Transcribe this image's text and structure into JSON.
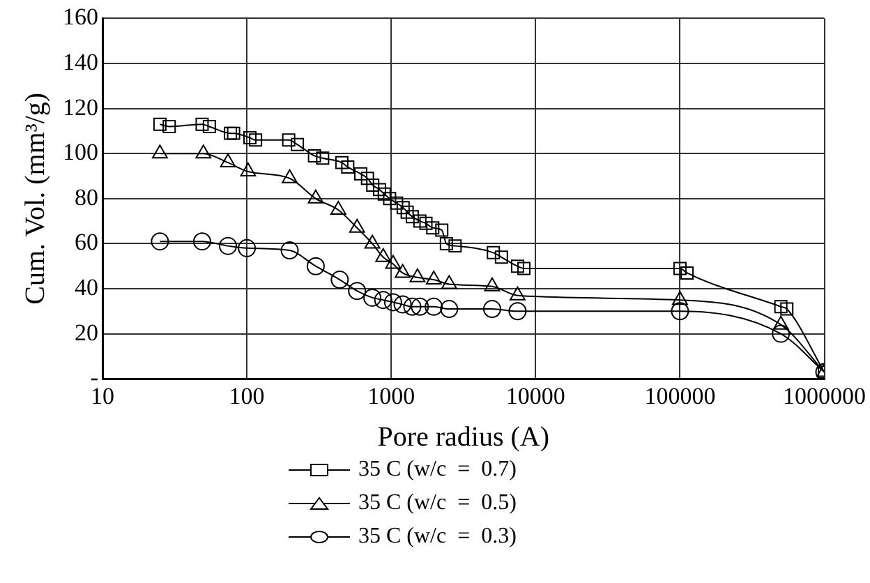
{
  "chart_data": {
    "type": "line",
    "xlabel": "Pore radius (A)",
    "ylabel": "Cum. Vol. (mm³/g)",
    "log": "x",
    "xlim": [
      10,
      1000000
    ],
    "xticks": [
      10,
      100,
      1000,
      10000,
      100000,
      1000000
    ],
    "ylim": [
      0,
      160
    ],
    "yticks": [
      {
        "value": 0,
        "label": "-"
      },
      20,
      40,
      60,
      80,
      100,
      120,
      140,
      160
    ],
    "grid": true,
    "legend": "bottom",
    "line_style": "solid",
    "series": [
      {
        "name": "35 C (w/c  =  0.7)",
        "color": "#000000",
        "marker": "square",
        "x": [
          25,
          29,
          49,
          55,
          77,
          81,
          105,
          115,
          195,
          224,
          294,
          335,
          455,
          500,
          615,
          685,
          745,
          830,
          895,
          975,
          1090,
          1210,
          1290,
          1400,
          1580,
          1740,
          1940,
          2240,
          2410,
          2770,
          5100,
          5800,
          7500,
          8300,
          100000,
          112000,
          500000,
          550000,
          1000000
        ],
        "values": [
          113,
          112,
          113,
          112,
          109,
          109,
          107,
          106,
          106,
          104,
          99,
          98,
          96,
          94,
          91,
          89,
          86,
          84,
          82,
          80,
          78,
          76,
          74,
          72,
          70,
          69,
          67,
          66,
          60,
          59,
          56,
          54,
          50,
          49,
          49,
          47,
          32,
          31,
          3
        ]
      },
      {
        "name": "35 C (w/c  =  0.5)",
        "color": "#000000",
        "marker": "triangle",
        "x": [
          25,
          50,
          74,
          102,
          198,
          300,
          430,
          580,
          740,
          880,
          1030,
          1200,
          1520,
          1970,
          2520,
          5000,
          7500,
          100000,
          500000,
          1000000
        ],
        "values": [
          100,
          100,
          96,
          92,
          89,
          80,
          75,
          67,
          60,
          54,
          51,
          47,
          45,
          44,
          42,
          41,
          37,
          35,
          24,
          3
        ]
      },
      {
        "name": "35 C (w/c  =  0.3)",
        "color": "#000000",
        "marker": "circle",
        "x": [
          25,
          49,
          74,
          100,
          198,
          300,
          440,
          580,
          740,
          880,
          1030,
          1200,
          1400,
          1580,
          1970,
          2520,
          5000,
          7500,
          100000,
          500000,
          1000000
        ],
        "values": [
          61,
          61,
          59,
          58,
          57,
          50,
          44,
          39,
          36,
          35,
          34,
          33,
          32,
          32,
          32,
          31,
          31,
          30,
          30,
          20,
          3
        ]
      }
    ]
  }
}
